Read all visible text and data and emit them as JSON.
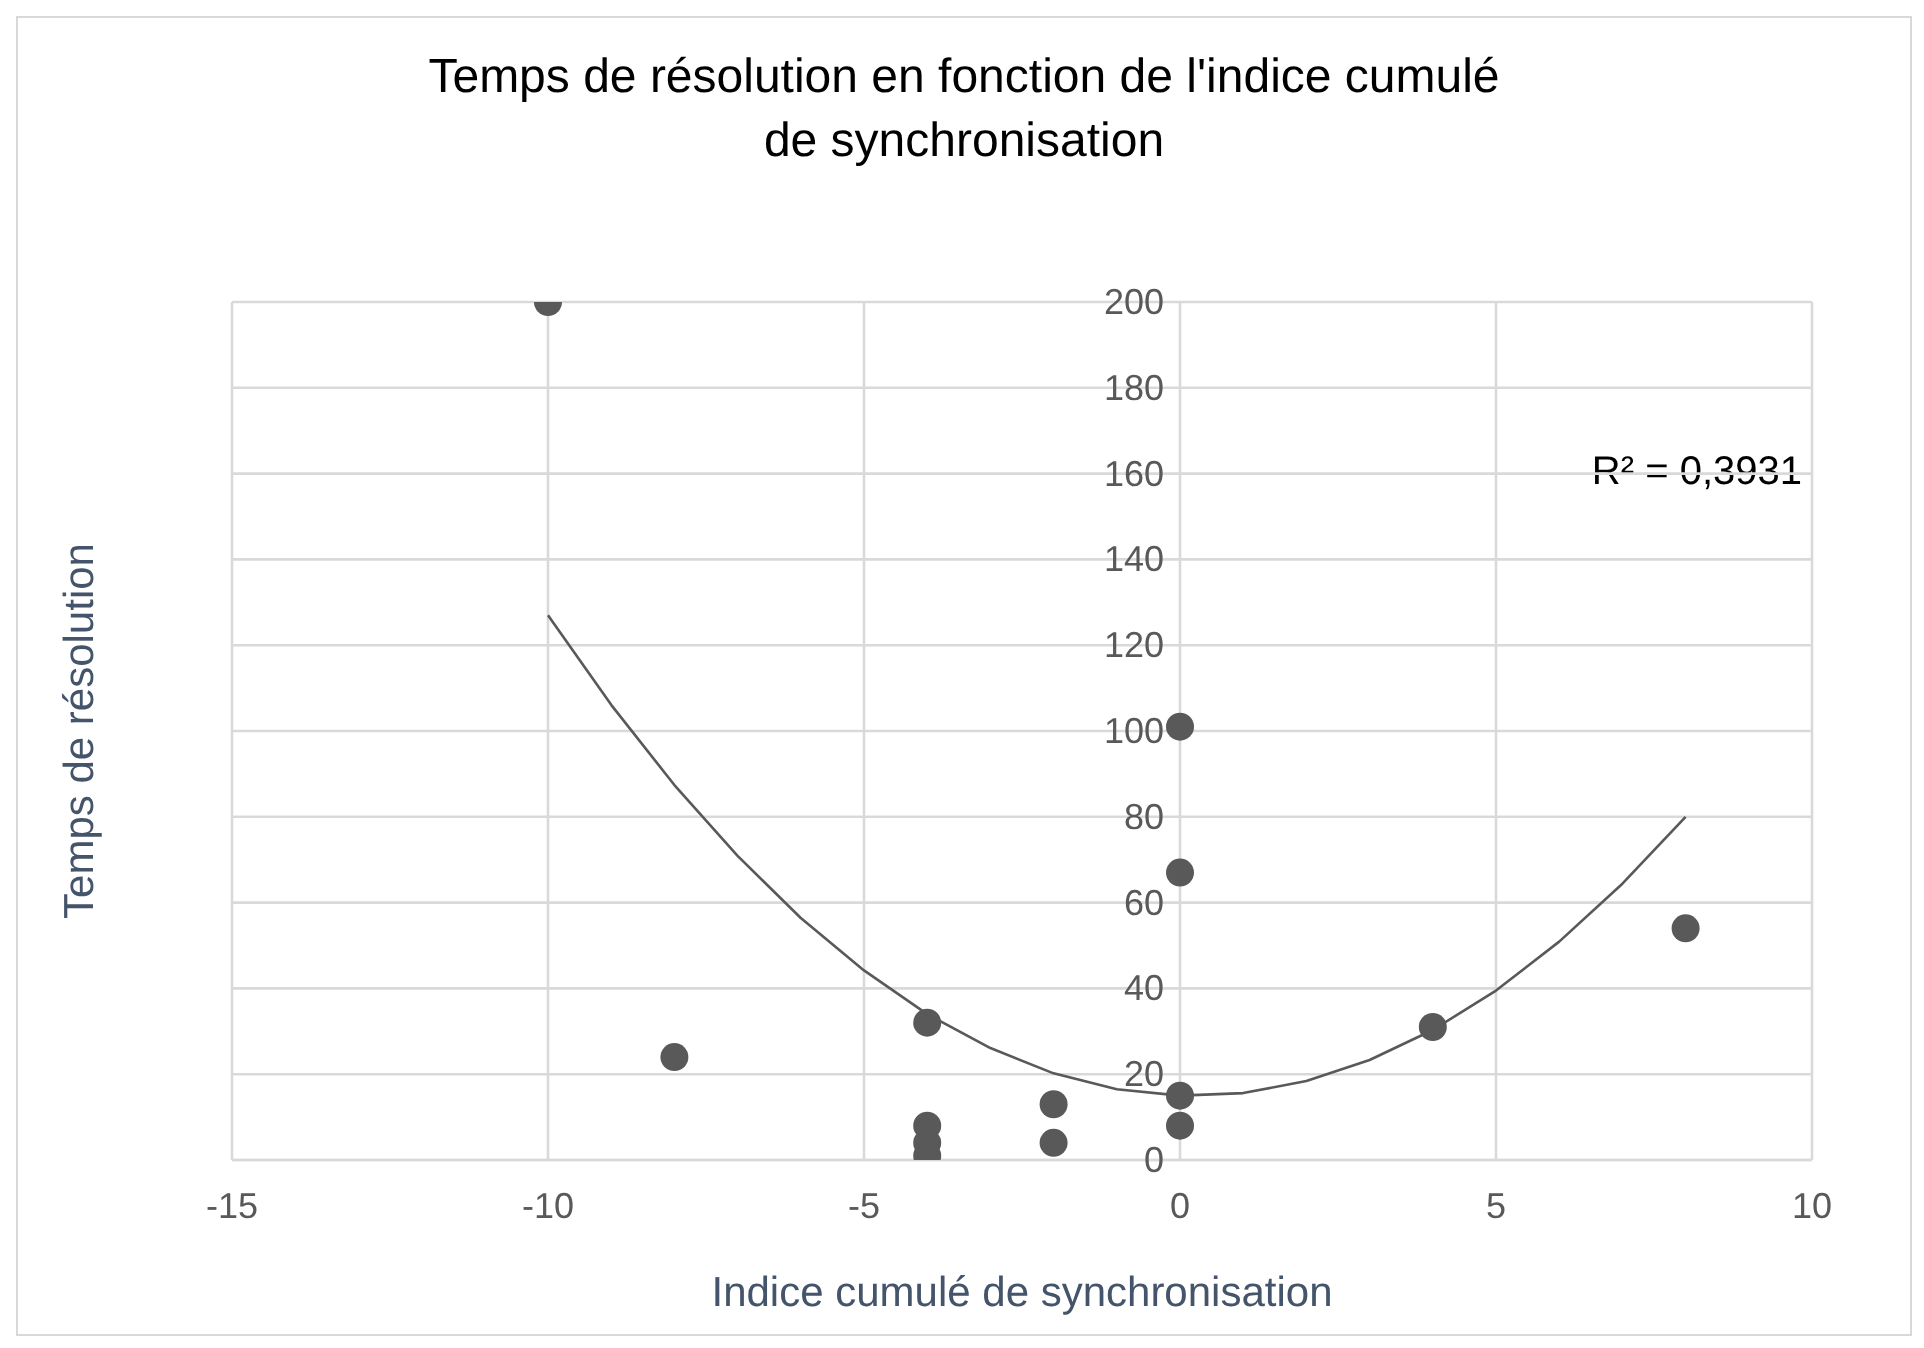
{
  "chart_data": {
    "type": "scatter",
    "title": "Temps de résolution en fonction de l'indice cumulé de synchronisation",
    "xlabel": "Indice cumulé de synchronisation",
    "ylabel": "Temps de résolution",
    "xlim": [
      -15,
      10
    ],
    "xticks": [
      -15,
      -10,
      -5,
      0,
      5,
      10
    ],
    "ylim": [
      0,
      200
    ],
    "yticks": [
      0,
      20,
      40,
      60,
      80,
      100,
      120,
      140,
      160,
      180,
      200
    ],
    "grid": true,
    "marker": "circle",
    "annotations": [
      "R² = 0,3931"
    ],
    "series": [
      {
        "color": "#595959",
        "x": [
          -10,
          -8,
          -4,
          -4,
          -4,
          -4,
          -2,
          -2,
          0,
          0,
          0,
          0,
          4,
          8
        ],
        "values": [
          200,
          24,
          32,
          8,
          4,
          1,
          13,
          4,
          101,
          67,
          15,
          8,
          31,
          54
        ]
      },
      {
        "type": "line",
        "color": "#595959",
        "marker": "none",
        "line_style": "solid",
        "x": [
          -10,
          -9,
          -8,
          -7,
          -6,
          -5,
          -4,
          -3,
          -2,
          -1,
          0,
          1,
          2,
          3,
          4,
          5,
          6,
          7,
          8
        ],
        "values": [
          127,
          106.1,
          87.4,
          70.9,
          56.4,
          44.2,
          34,
          26.1,
          20.2,
          16.5,
          15,
          15.6,
          18.4,
          23.3,
          30.3,
          39.5,
          50.9,
          64.4,
          80
        ]
      }
    ]
  }
}
